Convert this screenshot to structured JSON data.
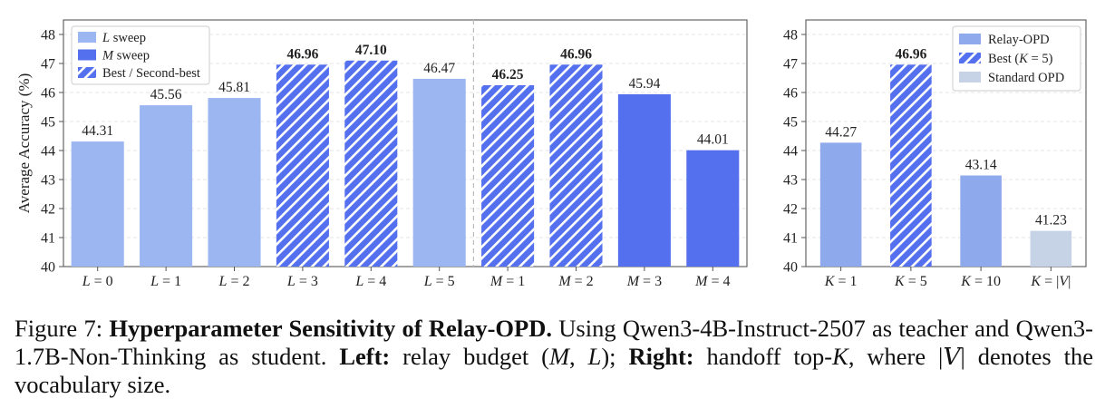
{
  "chart_data": [
    {
      "type": "bar",
      "ylabel": "Average Accuracy (%)",
      "ylim": [
        40,
        48.5
      ],
      "yticks": [
        40,
        41,
        42,
        43,
        44,
        45,
        46,
        47,
        48
      ],
      "grid": true,
      "legend_position": "top-left",
      "legend": [
        {
          "label": "L sweep",
          "color": "#9cb6f2",
          "style": "solid"
        },
        {
          "label": "M sweep",
          "color": "#5470ee",
          "style": "solid"
        },
        {
          "label": "Best / Second-best",
          "color": "#5470ee",
          "style": "hatched"
        }
      ],
      "categories": [
        "L = 0",
        "L = 1",
        "L = 2",
        "L = 3",
        "L = 4",
        "L = 5",
        "M = 1",
        "M = 2",
        "M = 3",
        "M = 4"
      ],
      "values": [
        44.31,
        45.56,
        45.81,
        46.96,
        47.1,
        46.47,
        46.25,
        46.96,
        45.94,
        44.01
      ],
      "value_labels": [
        "44.31",
        "45.56",
        "45.81",
        "46.96",
        "47.10",
        "46.47",
        "46.25",
        "46.96",
        "45.94",
        "44.01"
      ],
      "group": [
        "L",
        "L",
        "L",
        "L",
        "L",
        "L",
        "M",
        "M",
        "M",
        "M"
      ],
      "hatched": [
        false,
        false,
        false,
        true,
        true,
        false,
        true,
        true,
        false,
        false
      ],
      "bold_label": [
        false,
        false,
        false,
        true,
        true,
        false,
        true,
        true,
        false,
        false
      ],
      "separator_after_index": 5
    },
    {
      "type": "bar",
      "ylim": [
        40,
        48.5
      ],
      "yticks": [
        40,
        41,
        42,
        43,
        44,
        45,
        46,
        47,
        48
      ],
      "grid": true,
      "legend_position": "top-right",
      "legend": [
        {
          "label": "Relay-OPD",
          "color": "#8ea9ec",
          "style": "solid"
        },
        {
          "label": "Best (K = 5)",
          "color": "#5470ee",
          "style": "hatched"
        },
        {
          "label": "Standard OPD",
          "color": "#c6d3e6",
          "style": "solid"
        }
      ],
      "categories": [
        "K = 1",
        "K = 5",
        "K = 10",
        "K = |V|"
      ],
      "values": [
        44.27,
        46.96,
        43.14,
        41.23
      ],
      "value_labels": [
        "44.27",
        "46.96",
        "43.14",
        "41.23"
      ],
      "kind": [
        "relay",
        "best",
        "relay",
        "standard"
      ],
      "bold_label": [
        false,
        true,
        false,
        false
      ]
    }
  ],
  "colors": {
    "l_sweep": "#9cb6f2",
    "m_sweep": "#5470ee",
    "relay": "#8ea9ec",
    "standard": "#c6d3e6",
    "hatch": "#5470ee",
    "axis": "#555555",
    "text": "#222222"
  },
  "caption": {
    "prefix": "Figure 7: ",
    "bold_title": "Hyperparameter Sensitivity of Relay-OPD.",
    "text1": " Using Qwen3-4B-Instruct-2507 as teacher and Qwen3-1.7B-Non-Thinking as student. ",
    "left_label": "Left:",
    "text2": " relay budget (",
    "m_var": "M",
    "comma": ", ",
    "l_var": "L",
    "text3": "); ",
    "right_label": "Right:",
    "text4": " handoff top-",
    "k_var": "K",
    "text5": ", where |",
    "v_var": "V",
    "text6": "| denotes the vocabulary size."
  }
}
